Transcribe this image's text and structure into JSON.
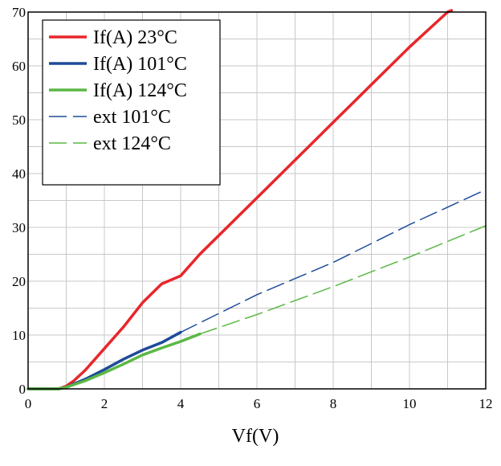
{
  "chart_data": {
    "type": "line",
    "xlabel": "Vf(V)",
    "ylabel": "",
    "xlim": [
      0,
      12
    ],
    "ylim": [
      0,
      70
    ],
    "xticks": [
      0,
      2,
      4,
      6,
      8,
      10,
      12
    ],
    "yticks": [
      0,
      10,
      20,
      30,
      40,
      50,
      60,
      70
    ],
    "grid": true,
    "legend_position": "top-left",
    "series": [
      {
        "name": "If(A) 23°C",
        "color": "#e8262b",
        "style": "solid",
        "x": [
          0,
          0.8,
          1.0,
          1.2,
          1.5,
          2.0,
          2.5,
          3.0,
          3.5,
          4.0,
          4.5,
          5.0,
          6.0,
          7.0,
          8.0,
          9.0,
          10.0,
          11.0,
          11.1
        ],
        "y": [
          0,
          0,
          0.5,
          1.5,
          3.5,
          7.5,
          11.5,
          16,
          19.5,
          21,
          25,
          28.5,
          35.5,
          42.5,
          49.5,
          56.5,
          63.5,
          70,
          70.3
        ]
      },
      {
        "name": "If(A) 101°C",
        "color": "#1f4b9a",
        "style": "solid",
        "x": [
          0,
          0.8,
          1.0,
          1.5,
          2.0,
          2.5,
          3.0,
          3.5,
          4.0
        ],
        "y": [
          0,
          0,
          0.3,
          1.8,
          3.6,
          5.5,
          7.2,
          8.6,
          10.5
        ]
      },
      {
        "name": "If(A) 124°C",
        "color": "#5ab845",
        "style": "solid",
        "x": [
          0,
          0.8,
          1.0,
          1.5,
          2.0,
          2.5,
          3.0,
          3.5,
          4.0,
          4.5
        ],
        "y": [
          0,
          0,
          0.3,
          1.5,
          3.0,
          4.6,
          6.3,
          7.6,
          8.8,
          10.2
        ]
      },
      {
        "name": "ext 101°C",
        "color": "#1f4b9a",
        "style": "dashed",
        "x": [
          4.0,
          6.0,
          8.0,
          10.0,
          12.0
        ],
        "y": [
          10.5,
          17.5,
          23.5,
          30.5,
          37
        ]
      },
      {
        "name": "ext 124°C",
        "color": "#5ab845",
        "style": "dashed",
        "x": [
          4.5,
          6.0,
          8.0,
          10.0,
          12.0
        ],
        "y": [
          10.2,
          13.8,
          19.0,
          24.5,
          30.3
        ]
      }
    ]
  }
}
